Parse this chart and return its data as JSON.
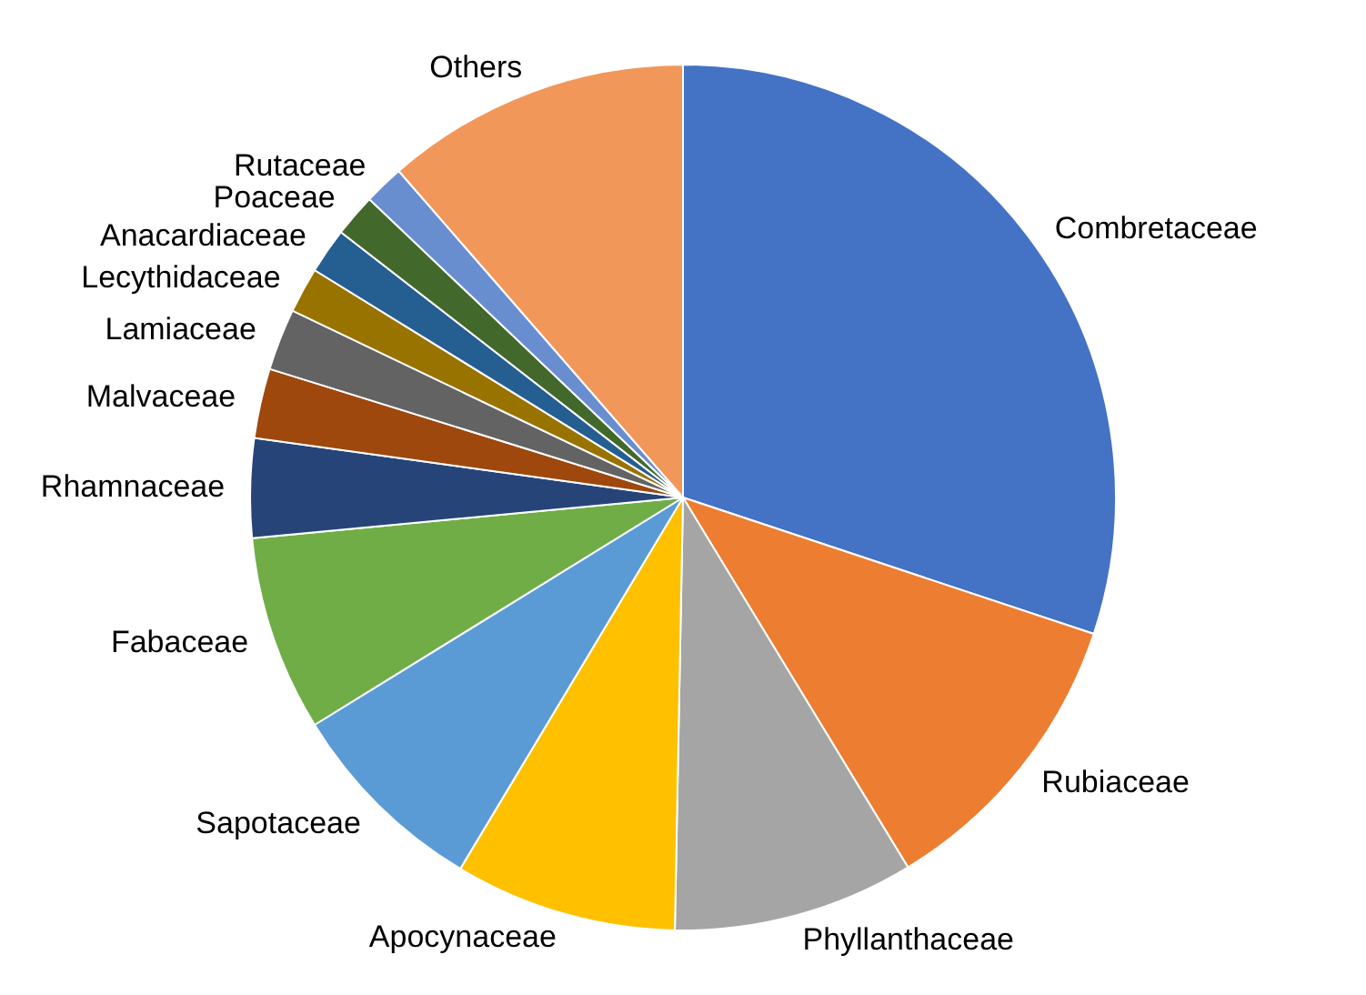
{
  "chart_data": {
    "type": "pie",
    "categories": [
      "Combretaceae",
      "Rubiaceae",
      "Phyllanthaceae",
      "Apocynaceae",
      "Sapotaceae",
      "Fabaceae",
      "Rhamnaceae",
      "Malvaceae",
      "Lamiaceae",
      "Lecythidaceae",
      "Anacardiaceae",
      "Poaceae",
      "Rutaceae",
      "Others"
    ],
    "values": [
      30.1,
      11.2,
      9.0,
      8.3,
      7.6,
      7.3,
      3.7,
      2.6,
      2.3,
      1.7,
      1.7,
      1.6,
      1.5,
      11.4
    ],
    "colors": [
      "#4472c4",
      "#ed7d31",
      "#a5a5a5",
      "#ffc000",
      "#5b9bd5",
      "#70ad47",
      "#264478",
      "#9e480e",
      "#636363",
      "#997300",
      "#255e91",
      "#43682b",
      "#698ed0",
      "#f1975a"
    ]
  }
}
